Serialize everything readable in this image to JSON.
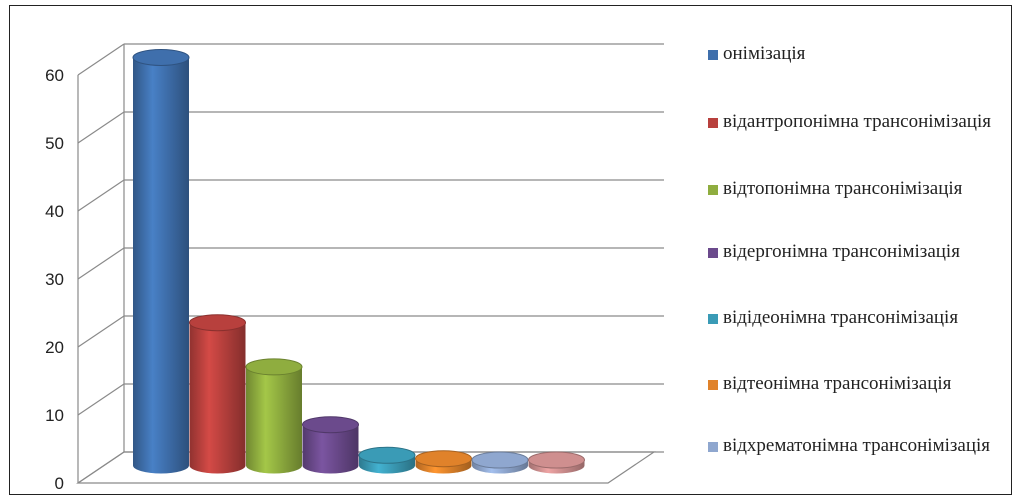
{
  "chart_data": {
    "type": "bar",
    "style": "3d-cylinder",
    "categories": [
      "онімізація",
      "відантропонімна трансонімізація",
      "відтопонімна трансонімізація",
      "відергонімна трансонімізація",
      "відідеонімна трансонімізація",
      "відтеонімна трансонімізація",
      "відхрематонімна трансонімізація",
      ""
    ],
    "values": [
      60,
      21,
      14.5,
      6,
      1.5,
      1,
      0.8,
      0.8
    ],
    "colors": [
      "#3f6fac",
      "#b8403d",
      "#8fad3f",
      "#6b4a8c",
      "#3a9bb6",
      "#e0822a",
      "#8fa7cf",
      "#cf8f8f"
    ],
    "yticks": [
      "0",
      "10",
      "20",
      "30",
      "40",
      "50",
      "60"
    ],
    "ylim": [
      0,
      60
    ],
    "grid": true,
    "legend_position": "right",
    "title": "",
    "xlabel": "",
    "ylabel": ""
  },
  "legend": [
    {
      "label": "онімізація",
      "color": "#3f6fac"
    },
    {
      "label": "відантропонімна трансонімізація",
      "color": "#b8403d"
    },
    {
      "label": "відтопонімна трансонімізація",
      "color": "#8fad3f"
    },
    {
      "label": "відергонімна трансонімізація",
      "color": "#6b4a8c"
    },
    {
      "label": "відідеонімна трансонімізація",
      "color": "#3a9bb6"
    },
    {
      "label": "відтеонімна трансонімізація",
      "color": "#e0822a"
    },
    {
      "label": "відхрематонімна трансонімізація",
      "color": "#8fa7cf"
    }
  ]
}
